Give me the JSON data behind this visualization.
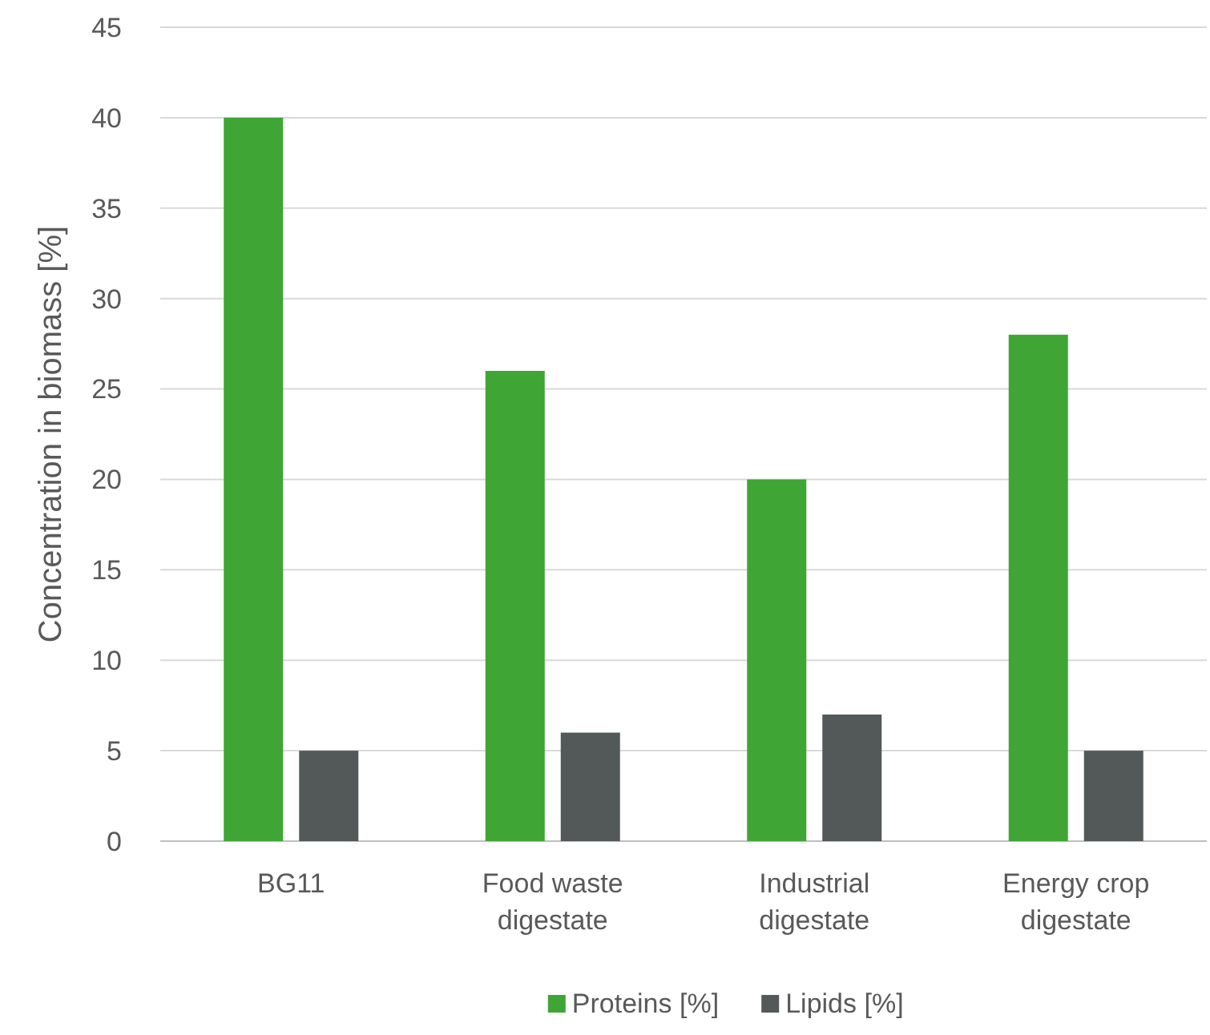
{
  "chart_data": {
    "type": "bar",
    "ylabel": "Concentration in biomass [%]",
    "categories": [
      "BG11",
      "Food waste digestate",
      "Industrial digestate",
      "Energy crop digestate"
    ],
    "series": [
      {
        "name": "Proteins [%]",
        "color": "#3fa535",
        "values": [
          40,
          26,
          20,
          28
        ]
      },
      {
        "name": "Lipids [%]",
        "color": "#535858",
        "values": [
          5,
          6,
          7,
          5
        ]
      }
    ],
    "ylim": [
      0,
      45
    ],
    "yticks": [
      0,
      5,
      10,
      15,
      20,
      25,
      30,
      35,
      40,
      45
    ],
    "grid": "y",
    "legend": "bottom"
  }
}
